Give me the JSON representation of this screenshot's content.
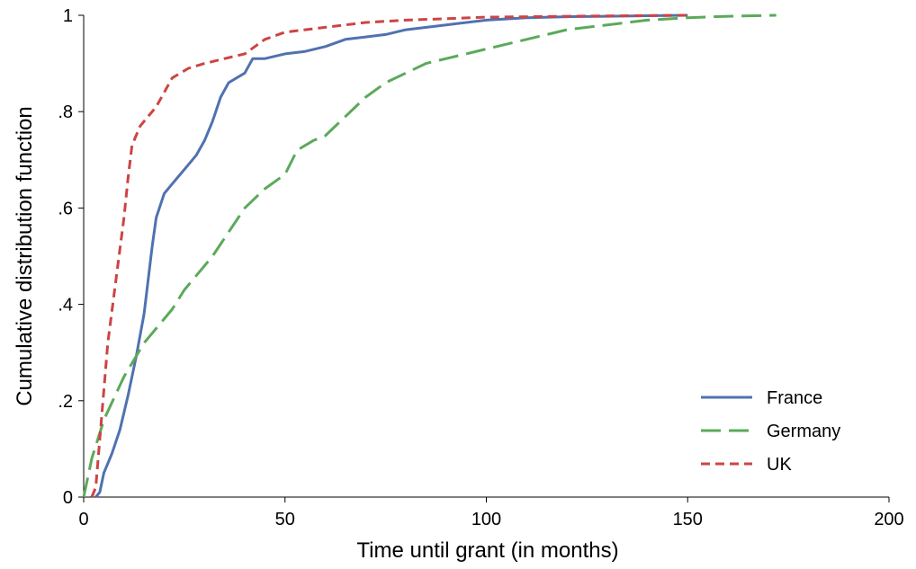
{
  "chart_data": {
    "type": "line",
    "xlabel": "Time until grant (in months)",
    "ylabel": "Cumulative distribution function",
    "xlim": [
      0,
      200
    ],
    "ylim": [
      0,
      1
    ],
    "x_ticks": [
      0,
      50,
      100,
      150,
      200
    ],
    "x_tick_labels": [
      "0",
      "50",
      "100",
      "150",
      "200"
    ],
    "y_ticks": [
      0,
      0.2,
      0.4,
      0.6,
      0.8,
      1
    ],
    "y_tick_labels": [
      "0",
      ".2",
      ".4",
      ".6",
      ".8",
      "1"
    ],
    "grid": false,
    "legend_position": "bottom-right",
    "series": [
      {
        "name": "France",
        "color": "#4f72b0",
        "dash": "solid",
        "points": [
          [
            3,
            0
          ],
          [
            4,
            0.01
          ],
          [
            5,
            0.05
          ],
          [
            7,
            0.09
          ],
          [
            9,
            0.14
          ],
          [
            11,
            0.21
          ],
          [
            13,
            0.29
          ],
          [
            15,
            0.38
          ],
          [
            16,
            0.45
          ],
          [
            17,
            0.52
          ],
          [
            18,
            0.58
          ],
          [
            20,
            0.63
          ],
          [
            22,
            0.65
          ],
          [
            24,
            0.67
          ],
          [
            26,
            0.69
          ],
          [
            28,
            0.71
          ],
          [
            30,
            0.74
          ],
          [
            32,
            0.78
          ],
          [
            34,
            0.83
          ],
          [
            36,
            0.86
          ],
          [
            40,
            0.88
          ],
          [
            42,
            0.91
          ],
          [
            45,
            0.91
          ],
          [
            50,
            0.92
          ],
          [
            55,
            0.925
          ],
          [
            60,
            0.935
          ],
          [
            65,
            0.95
          ],
          [
            70,
            0.955
          ],
          [
            75,
            0.96
          ],
          [
            80,
            0.97
          ],
          [
            90,
            0.98
          ],
          [
            100,
            0.99
          ],
          [
            110,
            0.995
          ],
          [
            120,
            0.997
          ],
          [
            130,
            0.998
          ],
          [
            140,
            0.999
          ],
          [
            150,
            1
          ]
        ]
      },
      {
        "name": "Germany",
        "color": "#5aaa5a",
        "dash": "long",
        "points": [
          [
            0,
            0
          ],
          [
            2,
            0.08
          ],
          [
            5,
            0.16
          ],
          [
            10,
            0.25
          ],
          [
            15,
            0.32
          ],
          [
            18,
            0.35
          ],
          [
            22,
            0.39
          ],
          [
            25,
            0.43
          ],
          [
            28,
            0.46
          ],
          [
            32,
            0.5
          ],
          [
            36,
            0.55
          ],
          [
            40,
            0.6
          ],
          [
            45,
            0.64
          ],
          [
            50,
            0.67
          ],
          [
            53,
            0.72
          ],
          [
            57,
            0.74
          ],
          [
            60,
            0.75
          ],
          [
            65,
            0.79
          ],
          [
            70,
            0.83
          ],
          [
            75,
            0.86
          ],
          [
            80,
            0.88
          ],
          [
            85,
            0.9
          ],
          [
            90,
            0.91
          ],
          [
            95,
            0.92
          ],
          [
            100,
            0.93
          ],
          [
            110,
            0.95
          ],
          [
            120,
            0.97
          ],
          [
            130,
            0.98
          ],
          [
            140,
            0.99
          ],
          [
            150,
            0.995
          ],
          [
            160,
            0.998
          ],
          [
            172,
            1
          ]
        ]
      },
      {
        "name": "UK",
        "color": "#cc4444",
        "dash": "short",
        "points": [
          [
            2,
            0
          ],
          [
            3,
            0.02
          ],
          [
            4,
            0.12
          ],
          [
            6,
            0.32
          ],
          [
            8,
            0.45
          ],
          [
            10,
            0.58
          ],
          [
            11,
            0.66
          ],
          [
            12,
            0.73
          ],
          [
            14,
            0.77
          ],
          [
            16,
            0.79
          ],
          [
            18,
            0.81
          ],
          [
            20,
            0.84
          ],
          [
            22,
            0.87
          ],
          [
            26,
            0.89
          ],
          [
            30,
            0.9
          ],
          [
            35,
            0.91
          ],
          [
            40,
            0.92
          ],
          [
            45,
            0.95
          ],
          [
            50,
            0.965
          ],
          [
            55,
            0.97
          ],
          [
            60,
            0.975
          ],
          [
            70,
            0.985
          ],
          [
            80,
            0.99
          ],
          [
            90,
            0.993
          ],
          [
            100,
            0.996
          ],
          [
            120,
            0.998
          ],
          [
            150,
            1
          ]
        ]
      }
    ]
  }
}
